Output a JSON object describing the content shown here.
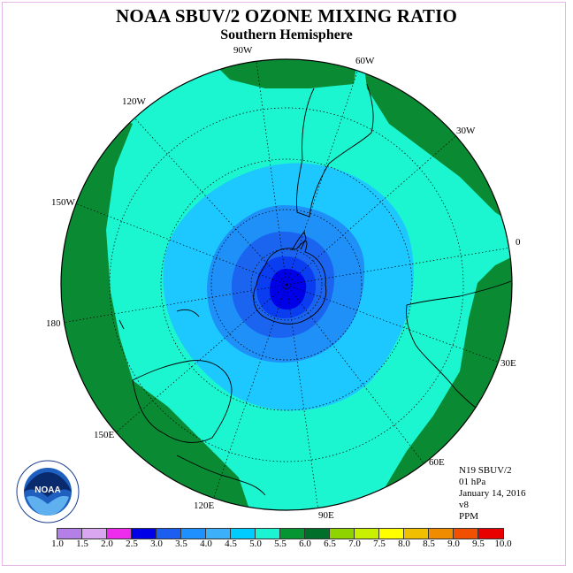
{
  "title": "NOAA SBUV/2 OZONE MIXING RATIO",
  "subtitle": "Southern Hemisphere",
  "longitude_labels": [
    "90W",
    "60W",
    "30W",
    "0",
    "30E",
    "60E",
    "90E",
    "120E",
    "150E",
    "180",
    "150W",
    "120W"
  ],
  "info": {
    "satellite": "N19 SBUV/2",
    "level": "01 hPa",
    "date": "January 14, 2016",
    "version": "v8",
    "units": "PPM"
  },
  "colorbar": {
    "ticks": [
      "1.0",
      "1.5",
      "2.0",
      "2.5",
      "3.0",
      "3.5",
      "4.0",
      "4.5",
      "5.0",
      "5.5",
      "6.0",
      "6.5",
      "7.0",
      "7.5",
      "8.0",
      "8.5",
      "9.0",
      "9.5",
      "10.0"
    ],
    "colors": [
      "#b57fe8",
      "#d9a6f0",
      "#ee2cee",
      "#0000e8",
      "#1c5ff0",
      "#1e90ff",
      "#3cb0f8",
      "#00ccff",
      "#1bf3d3",
      "#059633",
      "#006f2a",
      "#8fd400",
      "#c8f000",
      "#ffff00",
      "#f0c000",
      "#f08c00",
      "#f05000",
      "#e80000",
      "#8b5a3c"
    ]
  },
  "logo_text": "NOAA",
  "colors": {
    "dark_green": "#0a8a32",
    "cyan_green": "#1bf5d0",
    "light_blue": "#1cc8ff",
    "medium_blue": "#1e90f8",
    "blue": "#1a64f0",
    "dark_blue": "#0000e8"
  }
}
